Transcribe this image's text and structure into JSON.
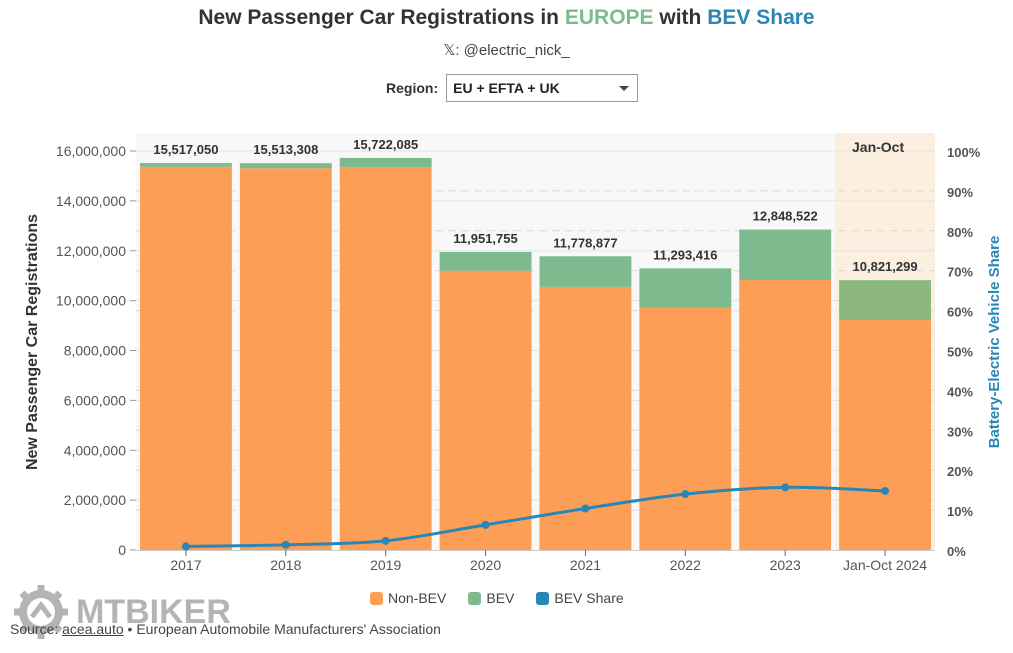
{
  "header": {
    "title_part1": "New Passenger Car Registrations in ",
    "title_part2": "EUROPE",
    "title_part3": " with ",
    "title_part4": "BEV Share",
    "subtitle": "𝕏: @electric_nick_"
  },
  "controls": {
    "region_label": "Region:",
    "region_selected": "EU + EFTA + UK"
  },
  "colors": {
    "non_bev": "#fd9e57",
    "bev": "#7dbb8f",
    "bev_share": "#2a86b5",
    "highlight_band": "#fcefdf",
    "plot_bg": "#f8f8f8"
  },
  "chart_data": {
    "type": "bar",
    "stacked": true,
    "title": "New Passenger Car Registrations in EUROPE with BEV Share",
    "categories": [
      "2017",
      "2018",
      "2019",
      "2020",
      "2021",
      "2022",
      "2023",
      "Jan-Oct 2024"
    ],
    "totals": [
      15517050,
      15513308,
      15722085,
      11951755,
      11778877,
      11293416,
      12848522,
      10821299
    ],
    "total_labels": [
      "15,517,050",
      "15,513,308",
      "15,722,085",
      "11,951,755",
      "11,778,877",
      "11,293,416",
      "12,848,522",
      "10,821,299"
    ],
    "series": [
      {
        "name": "Non-BEV",
        "type": "bar",
        "axis": "left",
        "values": [
          15370000,
          15310000,
          15360000,
          11200000,
          10550000,
          9710000,
          10830000,
          9220000
        ]
      },
      {
        "name": "BEV",
        "type": "bar",
        "axis": "left",
        "values": [
          147000,
          203000,
          362000,
          752000,
          1229000,
          1583000,
          2019000,
          1601000
        ]
      },
      {
        "name": "BEV Share",
        "type": "line",
        "axis": "right",
        "unit": "%",
        "values": [
          0.9,
          1.3,
          2.3,
          6.3,
          10.4,
          14.0,
          15.7,
          14.8
        ]
      }
    ],
    "xlabel": "",
    "ylabel": "New Passenger Car Registrations",
    "y2label": "Battery-Electric Vehicle Share",
    "ylim": [
      0,
      16000000
    ],
    "y_ticks": [
      "0",
      "2,000,000",
      "4,000,000",
      "6,000,000",
      "8,000,000",
      "10,000,000",
      "12,000,000",
      "14,000,000",
      "16,000,000"
    ],
    "y_tick_values": [
      0,
      2000000,
      4000000,
      6000000,
      8000000,
      10000000,
      12000000,
      14000000,
      16000000
    ],
    "y2lim": [
      0,
      100
    ],
    "y2_ticks": [
      "0%",
      "10%",
      "20%",
      "30%",
      "40%",
      "50%",
      "60%",
      "70%",
      "80%",
      "90%",
      "100%"
    ],
    "y2_tick_values": [
      0,
      10,
      20,
      30,
      40,
      50,
      60,
      70,
      80,
      90,
      100
    ],
    "highlight": {
      "category": "Jan-Oct 2024",
      "label": "Jan-Oct"
    },
    "grid": true,
    "legend": {
      "position": "bottom-center",
      "entries": [
        "Non-BEV",
        "BEV",
        "BEV Share"
      ]
    }
  },
  "footer": {
    "source_prefix": "Source: ",
    "source_link": "acea.auto",
    "source_suffix": " • European Automobile Manufacturers' Association",
    "watermark": "MTBIKER"
  }
}
